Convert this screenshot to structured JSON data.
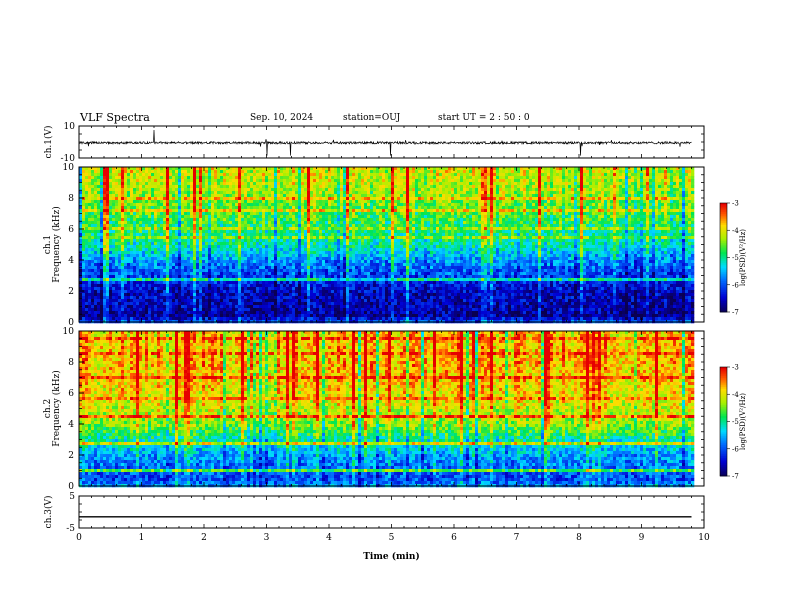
{
  "header": {
    "title": "VLF Spectra",
    "date": "Sep. 10, 2024",
    "station": "station=OUJ",
    "start": "start UT =  2 : 50 : 0"
  },
  "chart_data": [
    {
      "type": "line",
      "panel": "ch1-waveform",
      "ylabel": "ch.1(V)",
      "ylim": [
        -10,
        10
      ],
      "yticks": [
        "10",
        "-10"
      ],
      "xlim": [
        0,
        10
      ],
      "series": [
        {
          "x": [
            0,
            9.8
          ],
          "values": [
            -0.5,
            -0.5
          ]
        }
      ],
      "color": "#000000"
    },
    {
      "type": "heatmap",
      "panel": "ch1-spectrogram",
      "ylabel": "ch.1 Frequency (kHz)",
      "ylim": [
        0,
        10
      ],
      "yticks": [
        "0",
        "2",
        "4",
        "6",
        "8",
        "10"
      ],
      "xlim": [
        0,
        10
      ],
      "data_end_min": 9.8,
      "colorbar": {
        "label": "log(PSD)(V²/Hz)",
        "ticks": [
          "-3",
          "-4",
          "-5",
          "-6",
          "-7"
        ],
        "range": [
          -7,
          -3
        ]
      },
      "freq_profile_khz": [
        0,
        0.5,
        1,
        2,
        3,
        4,
        5,
        6,
        7,
        8,
        9,
        10
      ],
      "log_psd_profile": [
        -5.8,
        -6.7,
        -6.6,
        -6.5,
        -6.1,
        -5.7,
        -5.1,
        -4.9,
        -4.6,
        -4.4,
        -4.2,
        -4.1
      ]
    },
    {
      "type": "heatmap",
      "panel": "ch2-spectrogram",
      "ylabel": "ch.2 Frequency (kHz)",
      "ylim": [
        0,
        10
      ],
      "yticks": [
        "0",
        "2",
        "4",
        "6",
        "8",
        "10"
      ],
      "xlim": [
        0,
        10
      ],
      "data_end_min": 9.8,
      "colorbar": {
        "label": "log(PSD)(V²/Hz)",
        "ticks": [
          "-3",
          "-4",
          "-5",
          "-6",
          "-7"
        ],
        "range": [
          -7,
          -3
        ]
      },
      "freq_profile_khz": [
        0,
        0.5,
        1,
        2,
        3,
        4,
        5,
        6,
        7,
        8,
        9,
        10
      ],
      "log_psd_profile": [
        -5.5,
        -6.0,
        -5.9,
        -5.6,
        -5.1,
        -4.4,
        -4.1,
        -3.9,
        -3.8,
        -3.7,
        -3.7,
        -3.8
      ]
    },
    {
      "type": "line",
      "panel": "ch3-waveform",
      "ylabel": "ch.3(V)",
      "ylim": [
        -5,
        5
      ],
      "yticks": [
        "5",
        "-5"
      ],
      "xlim": [
        0,
        10
      ],
      "xlabel": "Time (min)",
      "xticks": [
        "0",
        "1",
        "2",
        "3",
        "4",
        "5",
        "6",
        "7",
        "8",
        "9",
        "10"
      ],
      "series": [
        {
          "x": [
            0,
            9.8
          ],
          "values": [
            -1.5,
            -1.5
          ]
        }
      ],
      "color": "#000000"
    }
  ]
}
